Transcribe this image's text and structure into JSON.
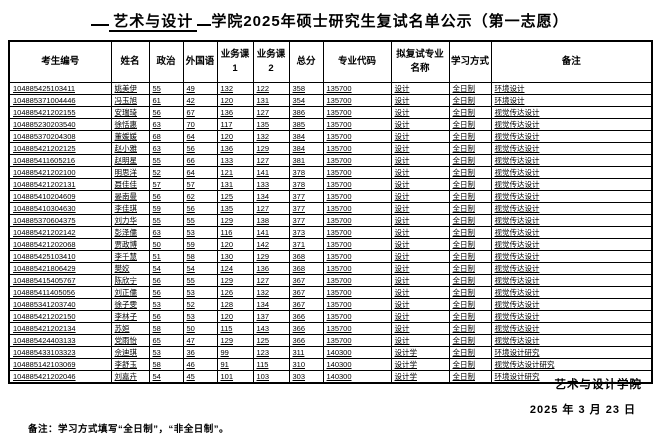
{
  "title": {
    "underlined": "艺术与设计",
    "rest": "学院2025年硕士研究生复试名单公示（第一志愿）"
  },
  "table": {
    "columns": [
      "考生编号",
      "姓名",
      "政治",
      "外国语",
      "业务课1",
      "业务课2",
      "总分",
      "专业代码",
      "拟复试专业名称",
      "学习方式",
      "备注"
    ],
    "rows": [
      [
        "104885425103411",
        "姚美伊",
        "55",
        "49",
        "132",
        "122",
        "358",
        "135700",
        "设计",
        "全日制",
        "环境设计"
      ],
      [
        "104885371004446",
        "冯玉旭",
        "61",
        "42",
        "120",
        "131",
        "354",
        "135700",
        "设计",
        "全日制",
        "环境设计"
      ],
      [
        "104885421202155",
        "安瑞琦",
        "56",
        "67",
        "136",
        "127",
        "386",
        "135700",
        "设计",
        "全日制",
        "视觉传达设计"
      ],
      [
        "104885230203540",
        "徐恬惠",
        "63",
        "70",
        "117",
        "135",
        "385",
        "135700",
        "设计",
        "全日制",
        "视觉传达设计"
      ],
      [
        "104885370204308",
        "董媛媛",
        "68",
        "64",
        "120",
        "132",
        "384",
        "135700",
        "设计",
        "全日制",
        "视觉传达设计"
      ],
      [
        "104885421202125",
        "赵小雅",
        "63",
        "56",
        "136",
        "129",
        "384",
        "135700",
        "设计",
        "全日制",
        "视觉传达设计"
      ],
      [
        "104885411605216",
        "赵明星",
        "55",
        "66",
        "133",
        "127",
        "381",
        "135700",
        "设计",
        "全日制",
        "视觉传达设计"
      ],
      [
        "104885421202100",
        "明思洋",
        "52",
        "64",
        "121",
        "141",
        "378",
        "135700",
        "设计",
        "全日制",
        "视觉传达设计"
      ],
      [
        "104885421202131",
        "聂佳佳",
        "57",
        "57",
        "131",
        "133",
        "378",
        "135700",
        "设计",
        "全日制",
        "视觉传达设计"
      ],
      [
        "104885410204609",
        "晏南曼",
        "56",
        "62",
        "125",
        "134",
        "377",
        "135700",
        "设计",
        "全日制",
        "视觉传达设计"
      ],
      [
        "104885410304630",
        "李佳琪",
        "59",
        "56",
        "135",
        "127",
        "377",
        "135700",
        "设计",
        "全日制",
        "视觉传达设计"
      ],
      [
        "104885370604375",
        "刘力华",
        "55",
        "55",
        "129",
        "138",
        "377",
        "135700",
        "设计",
        "全日制",
        "视觉传达设计"
      ],
      [
        "104885421202142",
        "彭泽儒",
        "63",
        "53",
        "116",
        "141",
        "373",
        "135700",
        "设计",
        "全日制",
        "视觉传达设计"
      ],
      [
        "104885421202068",
        "贾政博",
        "50",
        "59",
        "120",
        "142",
        "371",
        "135700",
        "设计",
        "全日制",
        "视觉传达设计"
      ],
      [
        "104885425103410",
        "李千慧",
        "51",
        "58",
        "130",
        "129",
        "368",
        "135700",
        "设计",
        "全日制",
        "视觉传达设计"
      ],
      [
        "104885421806429",
        "樊姣",
        "54",
        "54",
        "124",
        "136",
        "368",
        "135700",
        "设计",
        "全日制",
        "视觉传达设计"
      ],
      [
        "104885415405767",
        "陈欣宁",
        "56",
        "55",
        "129",
        "127",
        "367",
        "135700",
        "设计",
        "全日制",
        "视觉传达设计"
      ],
      [
        "104885411405056",
        "刘正儒",
        "56",
        "53",
        "126",
        "132",
        "367",
        "135700",
        "设计",
        "全日制",
        "视觉传达设计"
      ],
      [
        "104885341203740",
        "徐子雯",
        "53",
        "52",
        "128",
        "134",
        "367",
        "135700",
        "设计",
        "全日制",
        "视觉传达设计"
      ],
      [
        "104885421202150",
        "李林子",
        "56",
        "53",
        "120",
        "137",
        "366",
        "135700",
        "设计",
        "全日制",
        "视觉传达设计"
      ],
      [
        "104885421202134",
        "苏姮",
        "58",
        "50",
        "115",
        "143",
        "366",
        "135700",
        "设计",
        "全日制",
        "视觉传达设计"
      ],
      [
        "104885424403133",
        "党雨怡",
        "65",
        "47",
        "129",
        "125",
        "366",
        "135700",
        "设计",
        "全日制",
        "视觉传达设计"
      ],
      [
        "104885433103323",
        "佘迪琪",
        "53",
        "36",
        "99",
        "123",
        "311",
        "140300",
        "设计学",
        "全日制",
        "环境设计研究"
      ],
      [
        "104885142103069",
        "李舒玉",
        "58",
        "46",
        "91",
        "115",
        "310",
        "140300",
        "设计学",
        "全日制",
        "视觉传达设计研究"
      ],
      [
        "104885421202046",
        "刘嘉卉",
        "54",
        "45",
        "101",
        "103",
        "303",
        "140300",
        "设计学",
        "全日制",
        "环境设计研究"
      ]
    ]
  },
  "footer": {
    "org": "艺术与设计学院",
    "date": "2025 年 3 月 23 日",
    "note": "备注：学习方式填写“全日制”，“非全日制”。"
  }
}
